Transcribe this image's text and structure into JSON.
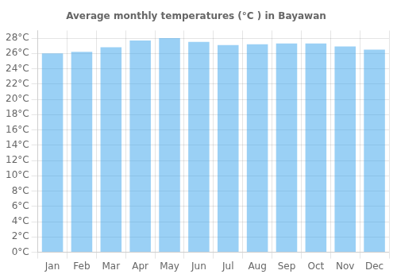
{
  "chart_data": {
    "type": "bar",
    "title": "Average monthly temperatures (°C ) in Bayawan",
    "categories": [
      "Jan",
      "Feb",
      "Mar",
      "Apr",
      "May",
      "Jun",
      "Jul",
      "Aug",
      "Sep",
      "Oct",
      "Nov",
      "Dec"
    ],
    "values": [
      26.0,
      26.2,
      26.8,
      27.7,
      28.0,
      27.5,
      27.1,
      27.2,
      27.3,
      27.3,
      26.9,
      26.5
    ],
    "ylim": [
      0,
      29
    ],
    "yticks": [
      {
        "value": 0,
        "label": "0°C"
      },
      {
        "value": 2,
        "label": "2°C"
      },
      {
        "value": 4,
        "label": "4°C"
      },
      {
        "value": 6,
        "label": "6°C"
      },
      {
        "value": 8,
        "label": "8°C"
      },
      {
        "value": 10,
        "label": "10°C"
      },
      {
        "value": 12,
        "label": "12°C"
      },
      {
        "value": 14,
        "label": "14°C"
      },
      {
        "value": 16,
        "label": "16°C"
      },
      {
        "value": 18,
        "label": "18°C"
      },
      {
        "value": 20,
        "label": "20°C"
      },
      {
        "value": 22,
        "label": "22°C"
      },
      {
        "value": 24,
        "label": "24°C"
      },
      {
        "value": 26,
        "label": "26°C"
      },
      {
        "value": 28,
        "label": "28°C"
      }
    ],
    "grid": true
  }
}
